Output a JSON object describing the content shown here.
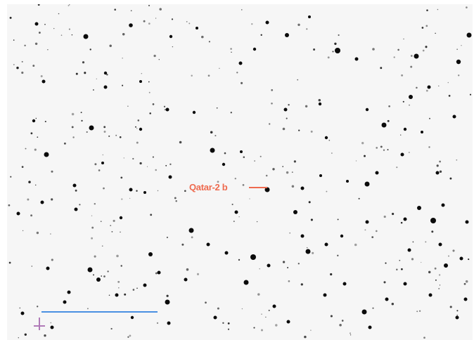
{
  "image": {
    "subject": "star-field",
    "background_color": "#f6f6f6",
    "star_color": "#0b0b0b"
  },
  "target": {
    "label": "Qatar-2 b",
    "color": "#ee6a4e"
  },
  "scale_bar": {
    "color": "#4a90e2"
  },
  "compass": {
    "color": "#b07ab8",
    "icon": "compass-cross-icon"
  }
}
